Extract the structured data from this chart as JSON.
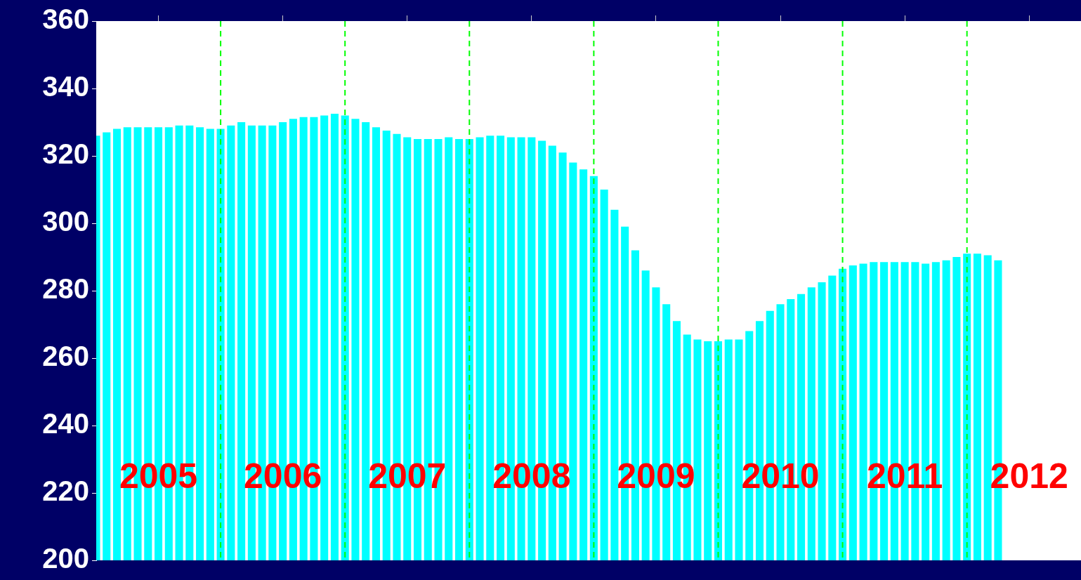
{
  "chart_data": {
    "type": "bar",
    "color": "#00ffff",
    "x": [
      "2005-01",
      "2005-02",
      "2005-03",
      "2005-04",
      "2005-05",
      "2005-06",
      "2005-07",
      "2005-08",
      "2005-09",
      "2005-10",
      "2005-11",
      "2005-12",
      "2006-01",
      "2006-02",
      "2006-03",
      "2006-04",
      "2006-05",
      "2006-06",
      "2006-07",
      "2006-08",
      "2006-09",
      "2006-10",
      "2006-11",
      "2006-12",
      "2007-01",
      "2007-02",
      "2007-03",
      "2007-04",
      "2007-05",
      "2007-06",
      "2007-07",
      "2007-08",
      "2007-09",
      "2007-10",
      "2007-11",
      "2007-12",
      "2008-01",
      "2008-02",
      "2008-03",
      "2008-04",
      "2008-05",
      "2008-06",
      "2008-07",
      "2008-08",
      "2008-09",
      "2008-10",
      "2008-11",
      "2008-12",
      "2009-01",
      "2009-02",
      "2009-03",
      "2009-04",
      "2009-05",
      "2009-06",
      "2009-07",
      "2009-08",
      "2009-09",
      "2009-10",
      "2009-11",
      "2009-12",
      "2010-01",
      "2010-02",
      "2010-03",
      "2010-04",
      "2010-05",
      "2010-06",
      "2010-07",
      "2010-08",
      "2010-09",
      "2010-10",
      "2010-11",
      "2010-12",
      "2011-01",
      "2011-02",
      "2011-03",
      "2011-04",
      "2011-05",
      "2011-06",
      "2011-07",
      "2011-08",
      "2011-09",
      "2011-10",
      "2011-11",
      "2011-12",
      "2012-01",
      "2012-02",
      "2012-03",
      "2012-04"
    ],
    "values": [
      326,
      327,
      328,
      328.5,
      328.5,
      328.5,
      328.5,
      328.5,
      329,
      329,
      328.5,
      328,
      328,
      329,
      330,
      329,
      329,
      329,
      330,
      331,
      331.5,
      331.5,
      332,
      332.5,
      332,
      331,
      330,
      328.5,
      327.5,
      326.5,
      325.5,
      325,
      325,
      325,
      325.5,
      325,
      325,
      325.5,
      326,
      326,
      325.5,
      325.5,
      325.5,
      324.5,
      323,
      321,
      318,
      316,
      314,
      310,
      304,
      299,
      292,
      286,
      281,
      276,
      271,
      267,
      265.5,
      265,
      265,
      265.5,
      265.5,
      268,
      271,
      274,
      276,
      277.5,
      279,
      281,
      282.5,
      284.5,
      286.5,
      287.5,
      288,
      288.5,
      288.5,
      288.5,
      288.5,
      288.5,
      288,
      288.5,
      289,
      290,
      291,
      291,
      290.5,
      289
    ],
    "xlim": [
      "2005-01",
      "2012-12"
    ],
    "xticks": [
      {
        "value": "2005-07",
        "label": "2005"
      },
      {
        "value": "2006-07",
        "label": "2006"
      },
      {
        "value": "2007-07",
        "label": "2007"
      },
      {
        "value": "2008-07",
        "label": "2008"
      },
      {
        "value": "2009-07",
        "label": "2009"
      },
      {
        "value": "2010-07",
        "label": "2010"
      },
      {
        "value": "2011-07",
        "label": "2011"
      },
      {
        "value": "2012-07",
        "label": "2012"
      },
      {
        "value": "2006-01",
        "label": null
      },
      {
        "value": "2007-01",
        "label": null
      },
      {
        "value": "2008-01",
        "label": null
      },
      {
        "value": "2009-01",
        "label": null
      },
      {
        "value": "2010-01",
        "label": null
      },
      {
        "value": "2011-01",
        "label": null
      },
      {
        "value": "2012-01",
        "label": null
      }
    ],
    "ylim": [
      200,
      360
    ],
    "yticks": [
      200,
      220,
      240,
      260,
      280,
      300,
      320,
      340,
      360
    ],
    "ref_lines": [
      {
        "axis": "x",
        "value": "2006-01",
        "color": "#00ff00",
        "line_style": "dashed"
      },
      {
        "axis": "x",
        "value": "2007-01",
        "color": "#00ff00",
        "line_style": "dashed"
      },
      {
        "axis": "x",
        "value": "2008-01",
        "color": "#00ff00",
        "line_style": "dashed"
      },
      {
        "axis": "x",
        "value": "2009-01",
        "color": "#00ff00",
        "line_style": "dashed"
      },
      {
        "axis": "x",
        "value": "2010-01",
        "color": "#00ff00",
        "line_style": "dashed"
      },
      {
        "axis": "x",
        "value": "2011-01",
        "color": "#00ff00",
        "line_style": "dashed"
      },
      {
        "axis": "x",
        "value": "2012-01",
        "color": "#00ff00",
        "line_style": "dashed"
      }
    ],
    "grid": false,
    "legend": false
  }
}
